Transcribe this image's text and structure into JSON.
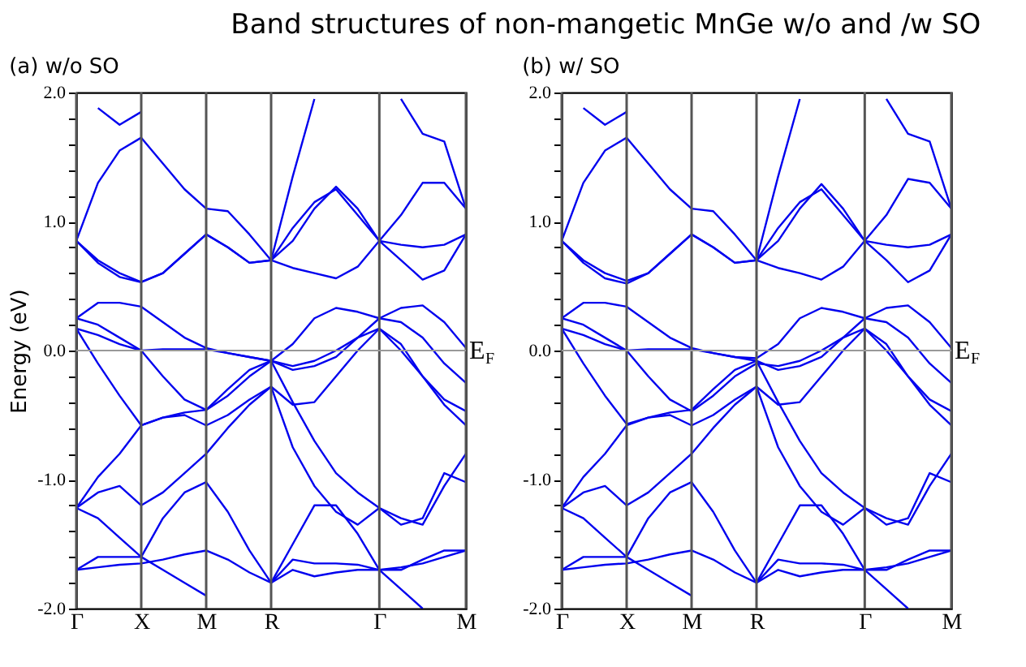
{
  "chart_data": [
    {
      "type": "line",
      "title": "Band structures of non-mangetic MnGe w/o and /w SO",
      "subtitle": "(a) w/o SO",
      "ylabel": "Energy (eV)",
      "categories": [
        "Γ",
        null,
        null,
        "X",
        null,
        null,
        "M",
        null,
        null,
        "R",
        null,
        null,
        null,
        null,
        "Γ",
        null,
        null,
        null,
        "M"
      ],
      "ylim": [
        -2,
        2
      ],
      "yticks": [
        {
          "value": -2,
          "label": "-2.0"
        },
        {
          "value": -1.8,
          "label": null
        },
        {
          "value": -1.6,
          "label": null
        },
        {
          "value": -1.4,
          "label": null
        },
        {
          "value": -1.2,
          "label": null
        },
        {
          "value": -1,
          "label": "-1.0"
        },
        {
          "value": -0.8,
          "label": null
        },
        {
          "value": -0.6,
          "label": null
        },
        {
          "value": -0.4,
          "label": null
        },
        {
          "value": -0.2,
          "label": null
        },
        {
          "value": 0,
          "label": "0.0"
        },
        {
          "value": 0.2,
          "label": null
        },
        {
          "value": 0.4,
          "label": null
        },
        {
          "value": 0.6,
          "label": null
        },
        {
          "value": 0.8,
          "label": null
        },
        {
          "value": 1,
          "label": "1.0"
        },
        {
          "value": 1.2,
          "label": null
        },
        {
          "value": 1.4,
          "label": null
        },
        {
          "value": 1.6,
          "label": null
        },
        {
          "value": 1.8,
          "label": null
        },
        {
          "value": 2,
          "label": "2.0"
        }
      ],
      "grid": "x",
      "ref_lines": [
        {
          "axis": "y",
          "value": 0,
          "label": "E$_{F}$",
          "color": "#999999"
        }
      ],
      "series": [
        {
          "color": "#0000ee",
          "values": [
            0.85,
            0.68,
            0.57,
            0.53,
            0.6,
            0.75,
            0.9,
            0.8,
            0.68,
            0.7,
            0.64,
            0.6,
            0.56,
            0.65,
            0.85,
            0.7,
            0.55,
            0.62,
            0.9
          ]
        },
        {
          "color": "#0000ee",
          "values": [
            0.85,
            0.7,
            0.6,
            0.53,
            0.6,
            0.75,
            0.9,
            0.8,
            0.68,
            0.7,
            0.85,
            1.1,
            1.27,
            1.1,
            0.85,
            0.82,
            0.8,
            0.82,
            0.9
          ]
        },
        {
          "color": "#0000ee",
          "values": [
            0.85,
            1.3,
            1.55,
            1.65,
            1.45,
            1.25,
            1.1,
            1.08,
            0.9,
            0.7,
            0.95,
            1.15,
            1.25,
            1.05,
            0.85,
            1.05,
            1.3,
            1.3,
            1.1
          ]
        },
        {
          "color": "#0000ee",
          "values": [
            null,
            1.88,
            1.75,
            1.85,
            null,
            null,
            null,
            null,
            null,
            0.7,
            1.35,
            1.95,
            null,
            null,
            null,
            null,
            null,
            null,
            null
          ]
        },
        {
          "color": "#0000ee",
          "values": [
            null,
            null,
            null,
            null,
            null,
            null,
            null,
            null,
            null,
            null,
            null,
            null,
            null,
            null,
            null,
            1.95,
            1.68,
            1.62,
            1.1
          ]
        },
        {
          "color": "#0000ee",
          "values": [
            0.25,
            0.37,
            0.37,
            0.34,
            0.22,
            0.1,
            0.02,
            -0.02,
            -0.05,
            -0.08,
            0.05,
            0.25,
            0.33,
            0.3,
            0.25,
            0.33,
            0.35,
            0.22,
            0.02
          ]
        },
        {
          "color": "#0000ee",
          "values": [
            0.17,
            0.12,
            0.05,
            0.0,
            -0.2,
            -0.38,
            -0.46,
            -0.35,
            -0.2,
            -0.08,
            -0.12,
            -0.08,
            0.0,
            0.1,
            0.17,
            0.0,
            -0.2,
            -0.38,
            -0.47
          ]
        },
        {
          "color": "#0000ee",
          "values": [
            0.17,
            -0.1,
            -0.35,
            -0.58,
            -0.52,
            -0.5,
            -0.58,
            -0.5,
            -0.38,
            -0.28,
            -0.42,
            -0.4,
            -0.2,
            0.0,
            0.17,
            0.05,
            -0.2,
            -0.42,
            -0.58
          ]
        },
        {
          "color": "#0000ee",
          "values": [
            0.25,
            0.2,
            0.1,
            0.0,
            0.01,
            0.01,
            0.01,
            -0.02,
            -0.05,
            -0.08,
            -0.15,
            -0.12,
            -0.05,
            0.1,
            0.25,
            0.22,
            0.1,
            -0.1,
            -0.25
          ]
        },
        {
          "color": "#0000ee",
          "values": [
            -1.22,
            -1.1,
            -1.05,
            -1.2,
            -1.1,
            -0.95,
            -0.8,
            -0.6,
            -0.42,
            -0.28,
            -0.75,
            -1.05,
            -1.25,
            -1.35,
            -1.22,
            -1.3,
            -1.35,
            -1.05,
            -0.8
          ]
        },
        {
          "color": "#0000ee",
          "values": [
            -1.22,
            -0.98,
            -0.8,
            -0.58,
            -0.52,
            -0.48,
            -0.46,
            -0.3,
            -0.15,
            -0.08,
            -0.4,
            -0.7,
            -0.95,
            -1.1,
            -1.22,
            -1.35,
            -1.3,
            -0.95,
            -1.02
          ]
        },
        {
          "color": "#0000ee",
          "values": [
            -1.7,
            -1.6,
            -1.6,
            -1.6,
            -1.3,
            -1.1,
            -1.02,
            -1.25,
            -1.55,
            -1.8,
            -1.5,
            -1.2,
            -1.2,
            -1.42,
            -1.7,
            -1.7,
            -1.62,
            -1.55,
            -1.55
          ]
        },
        {
          "color": "#0000ee",
          "values": [
            -1.7,
            -1.68,
            -1.66,
            -1.65,
            -1.62,
            -1.58,
            -1.55,
            -1.62,
            -1.72,
            -1.8,
            -1.62,
            -1.65,
            -1.65,
            -1.66,
            -1.7,
            -1.68,
            -1.65,
            -1.6,
            -1.55
          ]
        },
        {
          "color": "#0000ee",
          "values": [
            -1.22,
            -1.3,
            -1.45,
            -1.6,
            -1.7,
            -1.8,
            -1.9,
            null,
            null,
            -1.8,
            -1.7,
            -1.75,
            -1.72,
            -1.7,
            -1.7,
            -1.85,
            -2.0,
            null,
            null
          ]
        }
      ]
    },
    {
      "type": "line",
      "subtitle": "(b) w/ SO",
      "categories": [
        "Γ",
        null,
        null,
        "X",
        null,
        null,
        "M",
        null,
        null,
        "R",
        null,
        null,
        null,
        null,
        "Γ",
        null,
        null,
        null,
        "M"
      ],
      "ylim": [
        -2,
        2
      ],
      "yticks": [
        {
          "value": -2,
          "label": "-2.0"
        },
        {
          "value": -1.8,
          "label": null
        },
        {
          "value": -1.6,
          "label": null
        },
        {
          "value": -1.4,
          "label": null
        },
        {
          "value": -1.2,
          "label": null
        },
        {
          "value": -1,
          "label": "-1.0"
        },
        {
          "value": -0.8,
          "label": null
        },
        {
          "value": -0.6,
          "label": null
        },
        {
          "value": -0.4,
          "label": null
        },
        {
          "value": -0.2,
          "label": null
        },
        {
          "value": 0,
          "label": "0.0"
        },
        {
          "value": 0.2,
          "label": null
        },
        {
          "value": 0.4,
          "label": null
        },
        {
          "value": 0.6,
          "label": null
        },
        {
          "value": 0.8,
          "label": null
        },
        {
          "value": 1,
          "label": "1.0"
        },
        {
          "value": 1.2,
          "label": null
        },
        {
          "value": 1.4,
          "label": null
        },
        {
          "value": 1.6,
          "label": null
        },
        {
          "value": 1.8,
          "label": null
        },
        {
          "value": 2,
          "label": "2.0"
        }
      ],
      "grid": "x",
      "ref_lines": [
        {
          "axis": "y",
          "value": 0,
          "label": "E$_{F}$",
          "color": "#999999"
        }
      ],
      "series": [
        {
          "color": "#0000ee",
          "values": [
            0.85,
            0.68,
            0.56,
            0.52,
            0.6,
            0.75,
            0.9,
            0.8,
            0.68,
            0.7,
            0.64,
            0.6,
            0.55,
            0.65,
            0.85,
            0.7,
            0.53,
            0.62,
            0.9
          ]
        },
        {
          "color": "#0000ee",
          "values": [
            0.85,
            0.7,
            0.6,
            0.54,
            0.6,
            0.75,
            0.9,
            0.8,
            0.68,
            0.7,
            0.85,
            1.1,
            1.29,
            1.1,
            0.85,
            0.82,
            0.8,
            0.82,
            0.9
          ]
        },
        {
          "color": "#0000ee",
          "values": [
            0.85,
            1.3,
            1.55,
            1.65,
            1.45,
            1.25,
            1.1,
            1.08,
            0.9,
            0.7,
            0.95,
            1.15,
            1.25,
            1.05,
            0.85,
            1.05,
            1.33,
            1.3,
            1.1
          ]
        },
        {
          "color": "#0000ee",
          "values": [
            null,
            1.88,
            1.75,
            1.85,
            null,
            null,
            null,
            null,
            null,
            0.7,
            1.35,
            1.95,
            null,
            null,
            null,
            null,
            null,
            null,
            null
          ]
        },
        {
          "color": "#0000ee",
          "values": [
            null,
            null,
            null,
            null,
            null,
            null,
            null,
            null,
            null,
            null,
            null,
            null,
            null,
            null,
            null,
            1.95,
            1.68,
            1.62,
            1.1
          ]
        },
        {
          "color": "#0000ee",
          "values": [
            0.25,
            0.37,
            0.37,
            0.34,
            0.22,
            0.1,
            0.02,
            -0.02,
            -0.05,
            -0.06,
            0.05,
            0.25,
            0.33,
            0.3,
            0.25,
            0.33,
            0.35,
            0.22,
            0.02
          ]
        },
        {
          "color": "#0000ee",
          "values": [
            0.17,
            0.12,
            0.05,
            0.0,
            -0.2,
            -0.38,
            -0.47,
            -0.35,
            -0.2,
            -0.1,
            -0.12,
            -0.08,
            0.0,
            0.1,
            0.17,
            0.0,
            -0.2,
            -0.38,
            -0.47
          ]
        },
        {
          "color": "#0000ee",
          "values": [
            0.17,
            -0.1,
            -0.35,
            -0.57,
            -0.52,
            -0.5,
            -0.58,
            -0.5,
            -0.38,
            -0.28,
            -0.42,
            -0.4,
            -0.2,
            0.0,
            0.17,
            0.05,
            -0.2,
            -0.42,
            -0.58
          ]
        },
        {
          "color": "#0000ee",
          "values": [
            0.25,
            0.2,
            0.1,
            0.0,
            0.01,
            0.01,
            0.01,
            -0.02,
            -0.05,
            -0.08,
            -0.15,
            -0.12,
            -0.05,
            0.1,
            0.25,
            0.22,
            0.1,
            -0.1,
            -0.25
          ]
        },
        {
          "color": "#0000ee",
          "values": [
            -1.22,
            -1.1,
            -1.05,
            -1.2,
            -1.1,
            -0.95,
            -0.8,
            -0.6,
            -0.42,
            -0.28,
            -0.75,
            -1.05,
            -1.25,
            -1.35,
            -1.22,
            -1.3,
            -1.35,
            -1.05,
            -0.8
          ]
        },
        {
          "color": "#0000ee",
          "values": [
            -1.22,
            -0.98,
            -0.8,
            -0.58,
            -0.52,
            -0.48,
            -0.46,
            -0.3,
            -0.15,
            -0.08,
            -0.4,
            -0.7,
            -0.95,
            -1.1,
            -1.22,
            -1.35,
            -1.3,
            -0.95,
            -1.02
          ]
        },
        {
          "color": "#0000ee",
          "values": [
            -1.7,
            -1.6,
            -1.6,
            -1.6,
            -1.3,
            -1.1,
            -1.02,
            -1.25,
            -1.55,
            -1.8,
            -1.5,
            -1.2,
            -1.2,
            -1.42,
            -1.7,
            -1.7,
            -1.62,
            -1.55,
            -1.55
          ]
        },
        {
          "color": "#0000ee",
          "values": [
            -1.7,
            -1.68,
            -1.66,
            -1.65,
            -1.62,
            -1.58,
            -1.55,
            -1.62,
            -1.72,
            -1.8,
            -1.62,
            -1.65,
            -1.65,
            -1.66,
            -1.7,
            -1.68,
            -1.65,
            -1.6,
            -1.55
          ]
        },
        {
          "color": "#0000ee",
          "values": [
            -1.22,
            -1.3,
            -1.45,
            -1.6,
            -1.7,
            -1.8,
            -1.9,
            null,
            null,
            -1.8,
            -1.7,
            -1.75,
            -1.72,
            -1.7,
            -1.7,
            -1.85,
            -2.0,
            null,
            null
          ]
        }
      ]
    }
  ]
}
